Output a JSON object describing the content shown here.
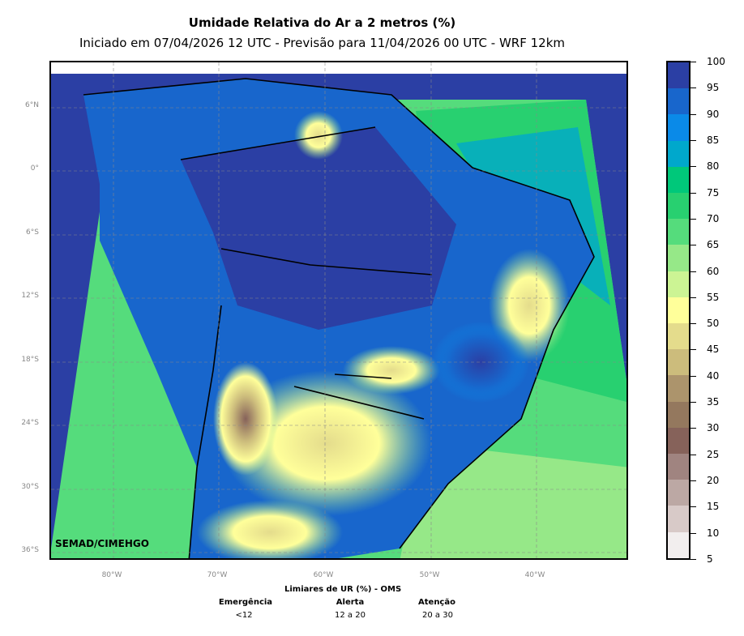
{
  "title": "Umidade Relativa do Ar a 2 metros (%)",
  "subtitle": "Iniciado em 07/04/2026 12 UTC - Previsão para 11/04/2026 00 UTC - WRF 12km",
  "credit": "SEMAD/CIMEHGO",
  "lat_labels": [
    "6°N",
    "0°",
    "6°S",
    "12°S",
    "18°S",
    "24°S",
    "30°S",
    "36°S"
  ],
  "lon_labels": [
    "80°W",
    "70°W",
    "60°W",
    "50°W",
    "40°W"
  ],
  "colorbar": {
    "ticks": [
      "100",
      "95",
      "90",
      "85",
      "80",
      "75",
      "70",
      "65",
      "60",
      "55",
      "50",
      "45",
      "40",
      "35",
      "30",
      "25",
      "20",
      "15",
      "10",
      "5"
    ],
    "colors": [
      "#2b3fa4",
      "#1866cc",
      "#0a8ae8",
      "#00a8cc",
      "#00c87a",
      "#28d070",
      "#55dc7c",
      "#96e888",
      "#ccf494",
      "#ffff9a",
      "#e4dc8c",
      "#ccbc7c",
      "#ac946c",
      "#94785e",
      "#86625a",
      "#a08480",
      "#bca8a4",
      "#d8cac8",
      "#f2eeee"
    ]
  },
  "legend": {
    "title": "Limiares de UR (%) - OMS",
    "levels": [
      {
        "label": "Emergência",
        "range": "<12"
      },
      {
        "label": "Alerta",
        "range": "12 a 20"
      },
      {
        "label": "Atenção",
        "range": "20 a 30"
      }
    ]
  }
}
